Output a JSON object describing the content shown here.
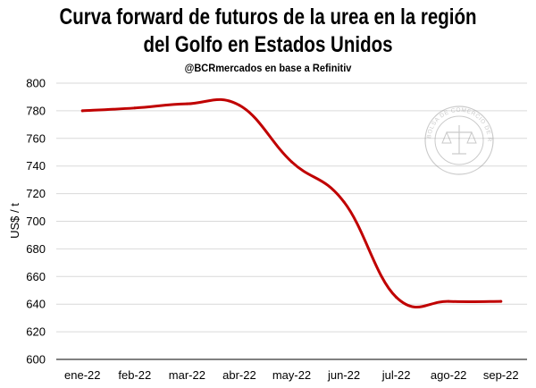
{
  "chart_data": {
    "type": "line",
    "title": "Curva forward de futuros de la urea en la región del Golfo en Estados Unidos",
    "title_lines": [
      "Curva forward de futuros de la urea en la región",
      "del Golfo en Estados Unidos"
    ],
    "subtitle": "@BCRmercados en base a Refinitiv",
    "xlabel": "",
    "ylabel": "US$ / t",
    "categories": [
      "ene-22",
      "feb-22",
      "mar-22",
      "abr-22",
      "may-22",
      "jun-22",
      "jul-22",
      "ago-22",
      "sep-22"
    ],
    "y_ticks": [
      600,
      620,
      640,
      660,
      680,
      700,
      720,
      740,
      760,
      780,
      800
    ],
    "ylim": [
      600,
      800
    ],
    "grid": true,
    "series": [
      {
        "color": "#c00000",
        "values": [
          780,
          782,
          785,
          784,
          743,
          714,
          645,
          642,
          642
        ]
      }
    ]
  },
  "watermark": {
    "text": "BOLSA DE COMERCIO DE ROSARIO"
  }
}
